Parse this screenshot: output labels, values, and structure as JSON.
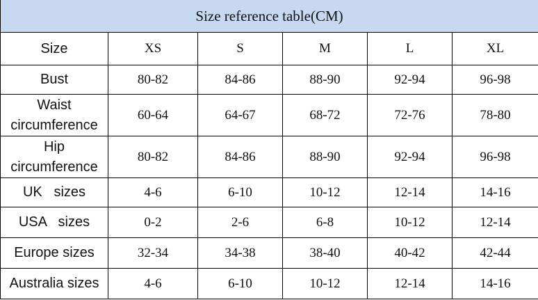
{
  "header": {
    "title": "Size reference table(CM)"
  },
  "table": {
    "columns": [
      "Size",
      "XS",
      "S",
      "M",
      "L",
      "XL"
    ],
    "rows": [
      [
        "Bust",
        "80-82",
        "84-86",
        "88-90",
        "92-94",
        "96-98"
      ],
      [
        "Waist circumference",
        "60-64",
        "64-67",
        "68-72",
        "72-76",
        "78-80"
      ],
      [
        "Hip circumference",
        "80-82",
        "84-86",
        "88-90",
        "92-94",
        "96-98"
      ],
      [
        "UK   sizes",
        "4-6",
        "6-10",
        "10-12",
        "12-14",
        "14-16"
      ],
      [
        "USA   sizes",
        "0-2",
        "2-6",
        "6-8",
        "10-12",
        "12-14"
      ],
      [
        "Europe sizes",
        "32-34",
        "34-38",
        "38-40",
        "40-42",
        "42-44"
      ],
      [
        "Australia sizes",
        "4-6",
        "6-10",
        "10-12",
        "12-14",
        "14-16"
      ]
    ]
  }
}
